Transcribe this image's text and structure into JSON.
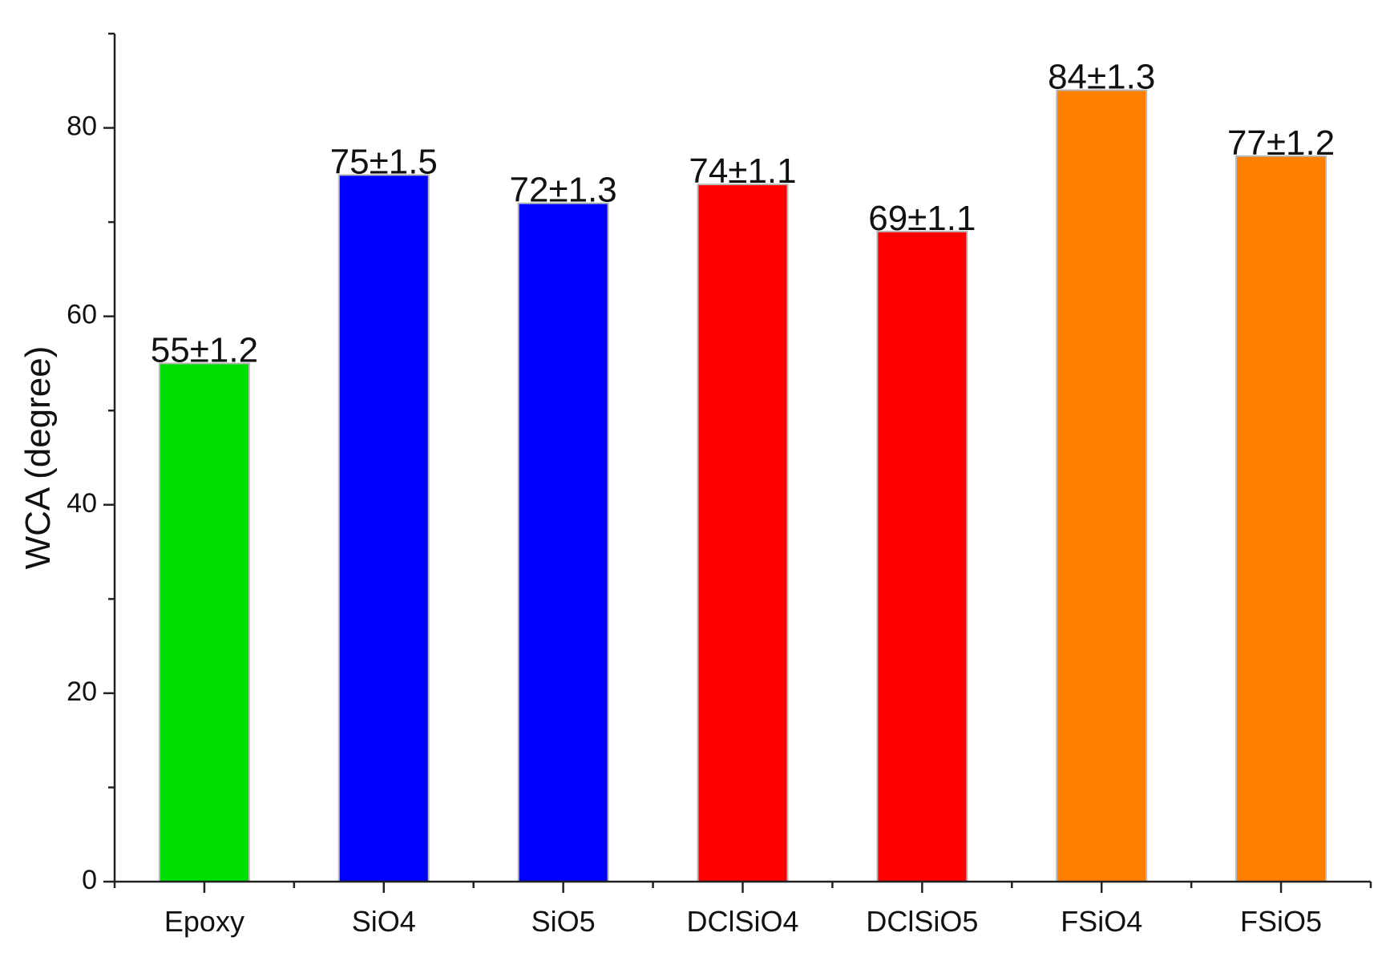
{
  "chart_data": {
    "type": "bar",
    "title": "",
    "xlabel": "",
    "ylabel": "WCA (degree)",
    "ylim": [
      0,
      90
    ],
    "yticks": [
      0,
      20,
      40,
      60,
      80
    ],
    "grid": false,
    "categories": [
      "Epoxy",
      "SiO4",
      "SiO5",
      "DClSiO4",
      "DClSiO5",
      "FSiO4",
      "FSiO5"
    ],
    "values": [
      55,
      75,
      72,
      74,
      69,
      84,
      77
    ],
    "errors": [
      1.2,
      1.5,
      1.3,
      1.1,
      1.1,
      1.3,
      1.2
    ],
    "data_labels": [
      "55±1.2",
      "75±1.5",
      "72±1.3",
      "74±1.1",
      "69±1.1",
      "84±1.3",
      "77±1.2"
    ],
    "colors": [
      "#00dd00",
      "#0000ff",
      "#0000ff",
      "#ff0000",
      "#ff0000",
      "#ff8000",
      "#ff8000"
    ]
  }
}
